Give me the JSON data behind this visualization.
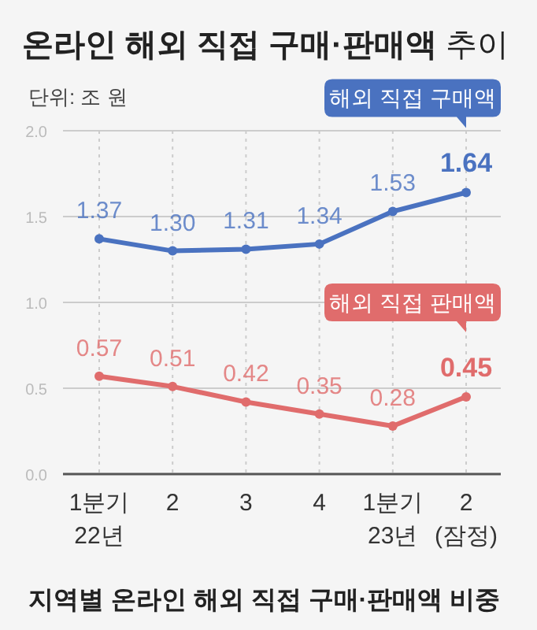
{
  "chart_data": {
    "type": "line",
    "title": "**온라인 해외 직접 구매·판매액** 추이",
    "subtitle": "단위: 조 원",
    "categories": [
      "1분기 22년",
      "2",
      "3",
      "4",
      "1분기 23년",
      "2 (잠정)"
    ],
    "series": [
      {
        "name": "해외 직접 구매액",
        "color": "#4a72c0",
        "values": [
          1.37,
          1.3,
          1.31,
          1.34,
          1.53,
          1.64
        ],
        "value_labels": [
          "1.37",
          "1.30",
          "1.31",
          "1.34",
          "1.53",
          "1.64"
        ]
      },
      {
        "name": "해외 직접 판매액",
        "color": "#e06c6c",
        "values": [
          0.57,
          0.51,
          0.42,
          0.35,
          0.28,
          0.45
        ],
        "value_labels": [
          "0.57",
          "0.51",
          "0.42",
          "0.35",
          "0.28",
          "0.45"
        ]
      }
    ],
    "ylim": [
      0,
      2
    ],
    "yticks": [
      {
        "value": 0,
        "label": "0.0"
      },
      {
        "value": 0.5,
        "label": "0.5"
      },
      {
        "value": 1,
        "label": "1.0"
      },
      {
        "value": 1.5,
        "label": "1.5"
      },
      {
        "value": 2,
        "label": "2.0"
      }
    ],
    "grid": true,
    "marker": "circle",
    "annotations": [
      "지역별 온라인 해외 직접 구매·판매액 비중"
    ]
  }
}
